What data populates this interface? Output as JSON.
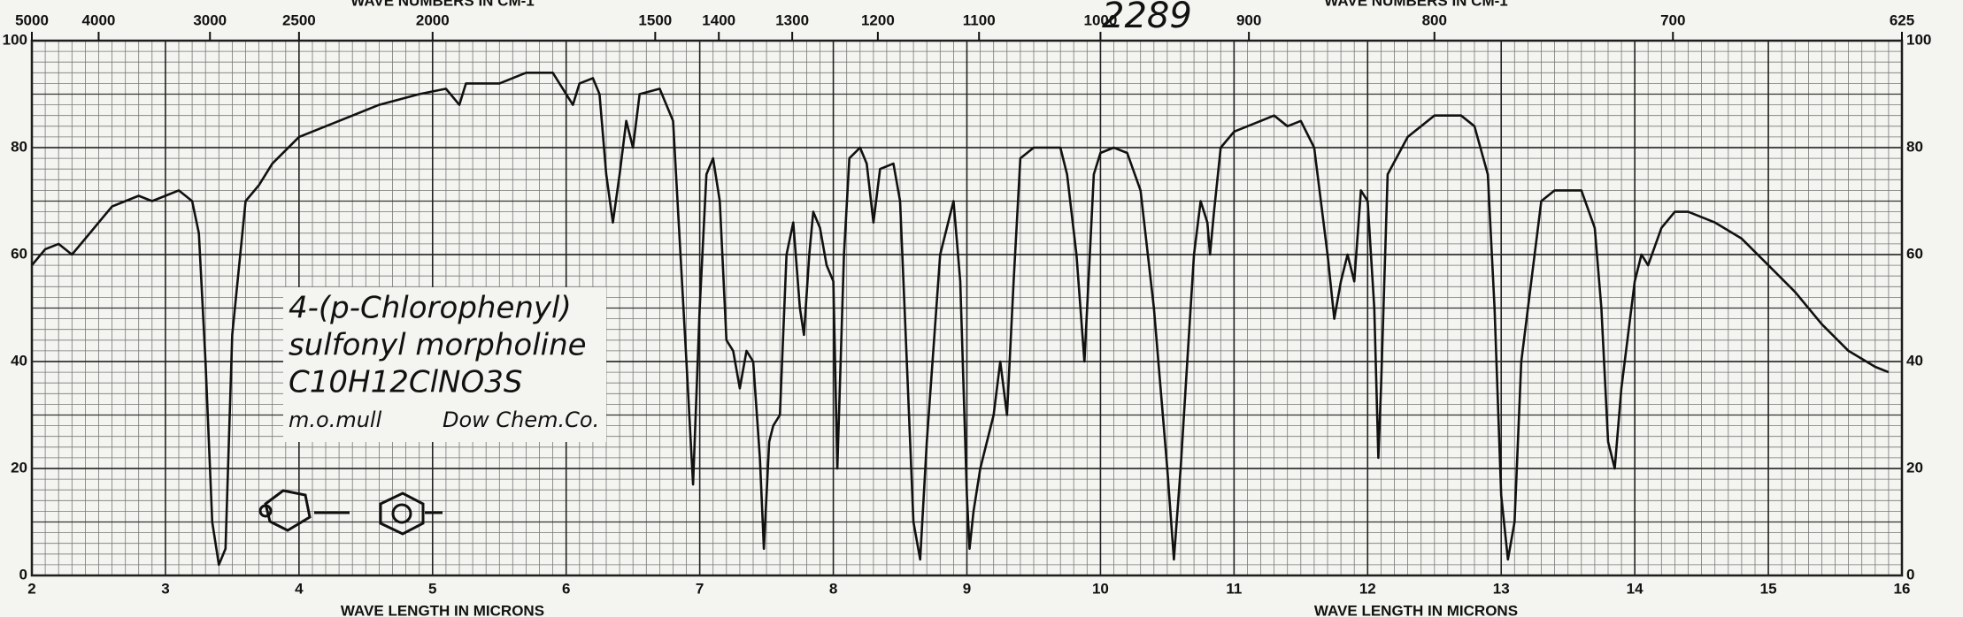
{
  "chart_data": {
    "type": "line",
    "x_label": "WAVE LENGTH IN MICRONS",
    "x2_label": "WAVE NUMBERS IN CM-1",
    "annotations": [
      "2289",
      "4-(p-Chlorophenyl)",
      "sulfonyl morpholine",
      "C10H12ClNO3S",
      "m.o.mull",
      "Dow Chem.Co."
    ],
    "xlim": [
      2,
      16
    ],
    "xticks": [
      2,
      3,
      4,
      5,
      6,
      7,
      8,
      9,
      10,
      11,
      12,
      13,
      14,
      15,
      16
    ],
    "x2ticks": [
      5000,
      4000,
      3000,
      2500,
      2000,
      1500,
      1400,
      1300,
      1200,
      1100,
      1000,
      900,
      800,
      700,
      625
    ],
    "ylim": [
      0,
      100
    ],
    "yticks": [
      0,
      20,
      40,
      60,
      80,
      100
    ],
    "grid": true,
    "color": "#111111",
    "x": [
      2.0,
      2.1,
      2.2,
      2.3,
      2.4,
      2.5,
      2.6,
      2.7,
      2.8,
      2.9,
      3.0,
      3.1,
      3.2,
      3.25,
      3.3,
      3.35,
      3.4,
      3.45,
      3.5,
      3.6,
      3.7,
      3.8,
      4.0,
      4.3,
      4.6,
      4.9,
      5.1,
      5.2,
      5.25,
      5.5,
      5.7,
      5.9,
      6.0,
      6.05,
      6.1,
      6.2,
      6.25,
      6.3,
      6.35,
      6.4,
      6.45,
      6.5,
      6.55,
      6.7,
      6.8,
      6.9,
      6.95,
      7.0,
      7.05,
      7.1,
      7.15,
      7.2,
      7.25,
      7.3,
      7.35,
      7.4,
      7.45,
      7.48,
      7.52,
      7.55,
      7.6,
      7.65,
      7.7,
      7.75,
      7.78,
      7.82,
      7.85,
      7.9,
      7.95,
      8.0,
      8.03,
      8.08,
      8.12,
      8.2,
      8.25,
      8.3,
      8.35,
      8.45,
      8.5,
      8.55,
      8.6,
      8.65,
      8.7,
      8.8,
      8.9,
      8.95,
      9.0,
      9.02,
      9.05,
      9.1,
      9.2,
      9.25,
      9.3,
      9.35,
      9.4,
      9.5,
      9.6,
      9.7,
      9.75,
      9.82,
      9.88,
      9.92,
      9.95,
      10.0,
      10.1,
      10.2,
      10.3,
      10.4,
      10.5,
      10.55,
      10.6,
      10.65,
      10.7,
      10.75,
      10.8,
      10.82,
      10.85,
      10.9,
      11.0,
      11.2,
      11.3,
      11.4,
      11.5,
      11.6,
      11.7,
      11.75,
      11.8,
      11.85,
      11.9,
      11.95,
      12.0,
      12.05,
      12.08,
      12.1,
      12.15,
      12.3,
      12.5,
      12.7,
      12.8,
      12.9,
      12.95,
      13.0,
      13.05,
      13.1,
      13.15,
      13.3,
      13.4,
      13.5,
      13.6,
      13.7,
      13.75,
      13.8,
      13.85,
      13.9,
      14.0,
      14.05,
      14.1,
      14.2,
      14.3,
      14.4,
      14.6,
      14.8,
      15.0,
      15.2,
      15.4,
      15.6,
      15.8,
      15.9
    ],
    "values": [
      58,
      61,
      62,
      60,
      63,
      66,
      69,
      70,
      71,
      70,
      71,
      72,
      70,
      64,
      40,
      10,
      2,
      5,
      45,
      70,
      73,
      77,
      82,
      85,
      88,
      90,
      91,
      88,
      92,
      92,
      94,
      94,
      90,
      88,
      92,
      93,
      90,
      75,
      66,
      75,
      85,
      80,
      90,
      91,
      85,
      40,
      17,
      50,
      75,
      78,
      70,
      44,
      42,
      35,
      42,
      40,
      22,
      5,
      25,
      28,
      30,
      60,
      66,
      50,
      45,
      60,
      68,
      65,
      58,
      55,
      20,
      60,
      78,
      80,
      77,
      66,
      76,
      77,
      70,
      40,
      10,
      3,
      25,
      60,
      70,
      55,
      15,
      5,
      12,
      20,
      30,
      40,
      30,
      55,
      78,
      80,
      80,
      80,
      75,
      60,
      40,
      60,
      75,
      79,
      80,
      79,
      72,
      50,
      20,
      3,
      20,
      40,
      60,
      70,
      66,
      60,
      68,
      80,
      83,
      85,
      86,
      84,
      85,
      80,
      60,
      48,
      55,
      60,
      55,
      72,
      70,
      50,
      22,
      35,
      75,
      82,
      86,
      86,
      84,
      75,
      50,
      15,
      3,
      10,
      40,
      70,
      72,
      72,
      72,
      65,
      50,
      25,
      20,
      35,
      55,
      60,
      58,
      65,
      68,
      68,
      66,
      63,
      58,
      53,
      47,
      42,
      39,
      38
    ]
  }
}
